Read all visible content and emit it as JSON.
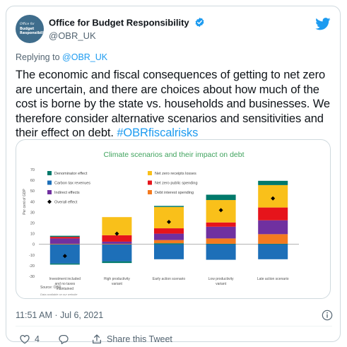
{
  "tweet": {
    "avatar": {
      "line1": "Office for",
      "line2": "Budget",
      "line3": "Responsibility"
    },
    "display_name": "Office for Budget Responsibility",
    "handle": "@OBR_UK",
    "replying_prefix": "Replying to",
    "replying_to": "@OBR_UK",
    "text": "The economic and fiscal consequences of getting to net zero are uncertain, and there are choices about how much of the cost is borne by the state vs. households and businesses. We therefore consider alternative scenarios and sensitivities and their effect on debt. ",
    "hashtag": "#OBRfiscalrisks",
    "timestamp": "11:51 AM · Jul 6, 2021",
    "likes": "4",
    "share_label": "Share this Tweet"
  },
  "colors": {
    "brand": "#1d9bf0",
    "denominator": "#00796b",
    "net_zero_receipts": "#f9c01a",
    "carbon_tax": "#1d6fb8",
    "net_zero_spending": "#e6141b",
    "indirect": "#7030a0",
    "debt_interest": "#f47a1f",
    "overall": "#000000"
  },
  "chart_data": {
    "type": "bar",
    "title": "Climate scenarios and their impact on debt",
    "ylabel": "Per cent of GDP",
    "ylim": [
      -30,
      70
    ],
    "yticks": [
      "70",
      "60",
      "50",
      "40",
      "30",
      "20",
      "10",
      "0",
      "-10",
      "-20",
      "-30"
    ],
    "source": "Source: OBR",
    "note": "Data available on our website",
    "categories": [
      "Investment included and no taxes maintained",
      "High productivity variant",
      "Early action scenario",
      "Low productivity variant",
      "Late action scenario"
    ],
    "legend": [
      {
        "name": "Denominator effect",
        "marker": "square",
        "color_key": "denominator"
      },
      {
        "name": "Net zero receipts losses",
        "marker": "square",
        "color_key": "net_zero_receipts"
      },
      {
        "name": "Carbon tax revenues",
        "marker": "square",
        "color_key": "carbon_tax"
      },
      {
        "name": "Net zero public spending",
        "marker": "square",
        "color_key": "net_zero_spending"
      },
      {
        "name": "Indirect effects",
        "marker": "square",
        "color_key": "indirect"
      },
      {
        "name": "Debt interest spending",
        "marker": "square",
        "color_key": "debt_interest"
      },
      {
        "name": "Overall effect",
        "marker": "diamond",
        "color_key": "overall"
      }
    ],
    "series": [
      {
        "name": "Carbon tax revenues",
        "color_key": "carbon_tax",
        "values": [
          -18,
          -16,
          -14,
          -14.5,
          -14
        ]
      },
      {
        "name": "Denominator effect",
        "color_key": "denominator",
        "values": [
          -1,
          -1.5,
          1,
          0.5,
          0.5
        ]
      },
      {
        "name": "Debt interest spending",
        "color_key": "debt_interest",
        "values": [
          0.5,
          0.5,
          3,
          5,
          9
        ]
      },
      {
        "name": "Indirect effects",
        "color_key": "indirect",
        "values": [
          5,
          2,
          6,
          11,
          13
        ]
      },
      {
        "name": "Net zero public spending",
        "color_key": "net_zero_spending",
        "values": [
          1.5,
          6,
          5,
          4,
          12
        ]
      },
      {
        "name": "Net zero receipts losses",
        "color_key": "net_zero_receipts",
        "values": [
          0,
          17,
          20,
          21,
          21
        ]
      },
      {
        "name": "Denominator effect (top)",
        "color_key": "denominator",
        "values": [
          1,
          0,
          1,
          5,
          4
        ]
      }
    ],
    "overall": [
      -11,
      10,
      21,
      32,
      43
    ]
  }
}
